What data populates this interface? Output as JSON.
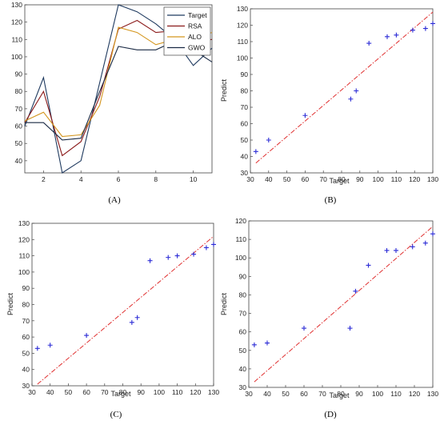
{
  "colors": {
    "target": "#1f3a5f",
    "rsa": "#8b1a1a",
    "alo": "#d4961e",
    "gwo": "#1a2a44",
    "fit_line": "#e03030",
    "marker": "#2b2bd6"
  },
  "chart_data": [
    {
      "id": "A",
      "type": "line",
      "caption": "(A)",
      "x": [
        1,
        2,
        3,
        4,
        5,
        6,
        7,
        8,
        9,
        10,
        11
      ],
      "xticks": [
        2,
        4,
        6,
        8,
        10
      ],
      "xlim": [
        1,
        11
      ],
      "ylim": [
        33,
        130
      ],
      "yticks": [
        40,
        50,
        60,
        70,
        80,
        90,
        100,
        110,
        120,
        130
      ],
      "legend_position": "top-right",
      "series": [
        {
          "name": "Target",
          "color_key": "target",
          "values": [
            60,
            88,
            33,
            40,
            85,
            130,
            126,
            119,
            110,
            95,
            105
          ]
        },
        {
          "name": "RSA",
          "color_key": "rsa",
          "values": [
            62,
            80,
            43,
            51,
            77,
            116,
            121,
            114,
            115,
            109,
            110
          ]
        },
        {
          "name": "ALO",
          "color_key": "alo",
          "values": [
            63,
            68,
            54,
            55,
            72,
            117,
            114,
            107,
            110,
            111,
            114
          ]
        },
        {
          "name": "GWO",
          "color_key": "gwo",
          "values": [
            62,
            62,
            52,
            53,
            80,
            106,
            104,
            104,
            109,
            104,
            97
          ]
        }
      ]
    },
    {
      "id": "B",
      "type": "scatter",
      "caption": "(B)",
      "xlabel": "Target",
      "ylabel": "Predict",
      "xlim": [
        30,
        130
      ],
      "ylim": [
        30,
        130
      ],
      "xticks": [
        30,
        40,
        50,
        60,
        70,
        80,
        90,
        100,
        110,
        120,
        130
      ],
      "yticks": [
        30,
        40,
        50,
        60,
        70,
        80,
        90,
        100,
        110,
        120,
        130
      ],
      "points": [
        [
          33,
          43
        ],
        [
          40,
          50
        ],
        [
          60,
          65
        ],
        [
          85,
          75
        ],
        [
          88,
          80
        ],
        [
          95,
          109
        ],
        [
          105,
          113
        ],
        [
          110,
          114
        ],
        [
          119,
          117
        ],
        [
          126,
          118
        ],
        [
          130,
          121
        ]
      ],
      "fit_line": [
        [
          33,
          36
        ],
        [
          130,
          128
        ]
      ]
    },
    {
      "id": "C",
      "type": "scatter",
      "caption": "(C)",
      "xlabel": "Target",
      "ylabel": "Predict",
      "xlim": [
        30,
        130
      ],
      "ylim": [
        30,
        130
      ],
      "xticks": [
        30,
        40,
        50,
        60,
        70,
        80,
        90,
        100,
        110,
        120,
        130
      ],
      "yticks": [
        30,
        40,
        50,
        60,
        70,
        80,
        90,
        100,
        110,
        120,
        130
      ],
      "points": [
        [
          33,
          53
        ],
        [
          40,
          55
        ],
        [
          60,
          61
        ],
        [
          85,
          69
        ],
        [
          88,
          72
        ],
        [
          95,
          107
        ],
        [
          105,
          109
        ],
        [
          110,
          110
        ],
        [
          119,
          111
        ],
        [
          126,
          115
        ],
        [
          130,
          117
        ]
      ],
      "fit_line": [
        [
          33,
          31
        ],
        [
          130,
          122
        ]
      ]
    },
    {
      "id": "D",
      "type": "scatter",
      "caption": "(D)",
      "xlabel": "Target",
      "ylabel": "Predict",
      "xlim": [
        30,
        130
      ],
      "ylim": [
        30,
        120
      ],
      "xticks": [
        30,
        40,
        50,
        60,
        70,
        80,
        90,
        100,
        110,
        120,
        130
      ],
      "yticks": [
        30,
        40,
        50,
        60,
        70,
        80,
        90,
        100,
        110,
        120
      ],
      "points": [
        [
          33,
          53
        ],
        [
          40,
          54
        ],
        [
          60,
          62
        ],
        [
          85,
          62
        ],
        [
          88,
          82
        ],
        [
          95,
          96
        ],
        [
          105,
          104
        ],
        [
          110,
          104
        ],
        [
          119,
          106
        ],
        [
          126,
          108
        ],
        [
          130,
          113
        ]
      ],
      "fit_line": [
        [
          33,
          33
        ],
        [
          130,
          117
        ]
      ]
    }
  ]
}
